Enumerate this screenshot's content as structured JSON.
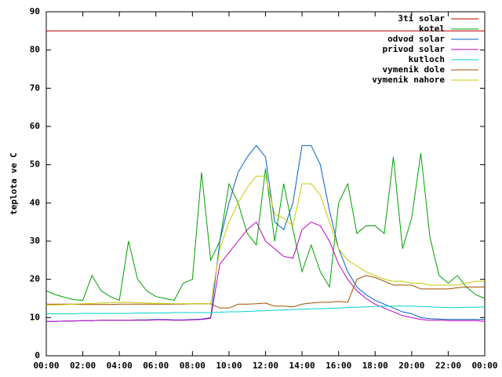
{
  "chart_data": {
    "type": "line",
    "ylabel": "teplota ve C",
    "xlim": [
      0,
      24
    ],
    "ylim": [
      0,
      90
    ],
    "yticks": [
      0,
      10,
      20,
      30,
      40,
      50,
      60,
      70,
      80,
      90
    ],
    "xticks": [
      {
        "value": 0,
        "label": "00:00"
      },
      {
        "value": 2,
        "label": "02:00"
      },
      {
        "value": 4,
        "label": "04:00"
      },
      {
        "value": 6,
        "label": "06:00"
      },
      {
        "value": 8,
        "label": "08:00"
      },
      {
        "value": 10,
        "label": "10:00"
      },
      {
        "value": 12,
        "label": "12:00"
      },
      {
        "value": 14,
        "label": "14:00"
      },
      {
        "value": 16,
        "label": "16:00"
      },
      {
        "value": 18,
        "label": "18:00"
      },
      {
        "value": 20,
        "label": "20:00"
      },
      {
        "value": 22,
        "label": "22:00"
      },
      {
        "value": 24,
        "label": "00:00"
      }
    ],
    "legend": "top right",
    "x": [
      0,
      0.5,
      1,
      1.5,
      2,
      2.5,
      3,
      3.5,
      4,
      4.5,
      5,
      5.5,
      6,
      6.5,
      7,
      7.5,
      8,
      8.5,
      9,
      9.5,
      10,
      10.5,
      11,
      11.5,
      12,
      12.5,
      13,
      13.5,
      14,
      14.5,
      15,
      15.5,
      16,
      16.5,
      17,
      17.5,
      18,
      18.5,
      19,
      19.5,
      20,
      20.5,
      21,
      21.5,
      22,
      22.5,
      23,
      23.5,
      24
    ],
    "series": [
      {
        "name": "3ti solar",
        "color": "#c00000",
        "values": [
          85,
          85,
          85,
          85,
          85,
          85,
          85,
          85,
          85,
          85,
          85,
          85,
          85,
          85,
          85,
          85,
          85,
          85,
          85,
          85,
          85,
          85,
          85,
          85,
          85,
          85,
          85,
          85,
          85,
          85,
          85,
          85,
          85,
          85,
          85,
          85,
          85,
          85,
          85,
          85,
          85,
          85,
          85,
          85,
          85,
          85,
          85,
          85,
          85
        ]
      },
      {
        "name": "kotel",
        "color": "#00a000",
        "values": [
          17,
          16,
          15.3,
          14.7,
          14.5,
          21,
          17,
          15.5,
          14.5,
          30,
          20,
          17,
          15.5,
          15,
          14.5,
          19,
          20,
          48,
          25,
          30,
          45,
          40,
          32,
          29,
          49,
          30,
          45,
          33,
          22,
          29,
          22,
          18,
          40,
          45,
          32,
          34,
          34,
          32,
          52,
          28,
          36,
          53,
          31,
          21,
          19,
          21,
          18,
          16,
          15
        ]
      },
      {
        "name": "odvod solar",
        "color": "#0060c0",
        "values": [
          9,
          9,
          9.1,
          9.1,
          9.2,
          9.2,
          9.3,
          9.3,
          9.3,
          9.3,
          9.4,
          9.4,
          9.5,
          9.5,
          9.4,
          9.4,
          9.5,
          9.6,
          10,
          30,
          40,
          48,
          52,
          55,
          52,
          35,
          33,
          40,
          55,
          55,
          50,
          38,
          28,
          22,
          18,
          16,
          14.5,
          13.5,
          12.5,
          11.5,
          11,
          10,
          9.7,
          9.6,
          9.5,
          9.5,
          9.5,
          9.5,
          9.5
        ]
      },
      {
        "name": "privod solar",
        "color": "#c000c0",
        "values": [
          9,
          9,
          9.1,
          9.1,
          9.2,
          9.2,
          9.3,
          9.3,
          9.3,
          9.3,
          9.3,
          9.3,
          9.4,
          9.4,
          9.3,
          9.3,
          9.4,
          9.5,
          9.8,
          24,
          27,
          30,
          33,
          35,
          30,
          28,
          26,
          25.5,
          33,
          35,
          34,
          30,
          24,
          20,
          17,
          15,
          13.5,
          12.5,
          11.5,
          10.5,
          10,
          9.5,
          9.3,
          9.3,
          9.2,
          9.2,
          9.2,
          9.2,
          9
        ]
      },
      {
        "name": "kutloch",
        "color": "#00d0d0",
        "values": [
          11,
          11,
          11,
          11,
          11.1,
          11.1,
          11.1,
          11.1,
          11.1,
          11.1,
          11.2,
          11.2,
          11.2,
          11.2,
          11.3,
          11.3,
          11.3,
          11.3,
          11.3,
          11.4,
          11.5,
          11.5,
          11.6,
          11.7,
          11.8,
          11.9,
          12,
          12.1,
          12.2,
          12.3,
          12.3,
          12.4,
          12.5,
          12.6,
          12.7,
          12.8,
          12.9,
          13,
          13,
          13,
          13,
          12.9,
          12.8,
          12.7,
          12.6,
          12.6,
          12.7,
          12.7,
          12.8
        ]
      },
      {
        "name": "vymenik dole",
        "color": "#a05000",
        "values": [
          13.5,
          13.5,
          13.5,
          13.5,
          13.4,
          13.4,
          13.4,
          13.4,
          13.5,
          13.5,
          13.5,
          13.5,
          13.5,
          13.5,
          13.5,
          13.5,
          13.6,
          13.6,
          13.6,
          12.5,
          12.5,
          13.5,
          13.5,
          13.6,
          13.8,
          13,
          13,
          12.8,
          13.5,
          13.8,
          14,
          14,
          14.2,
          14,
          20,
          21,
          20.5,
          19.5,
          18.5,
          18.5,
          18.5,
          17.5,
          17.5,
          17.5,
          17.5,
          17.8,
          18,
          18,
          18
        ]
      },
      {
        "name": "vymenik nahore",
        "color": "#c8c800",
        "values": [
          13.3,
          13.3,
          13.4,
          13.5,
          13.6,
          13.7,
          13.8,
          13.9,
          14,
          14,
          13.9,
          13.8,
          13.7,
          13.7,
          13.6,
          13.6,
          13.6,
          13.6,
          13.6,
          28,
          35,
          40,
          44,
          47,
          47,
          37,
          36,
          34,
          45,
          45,
          42,
          35,
          28,
          25,
          23.5,
          22,
          21,
          20,
          19.5,
          19.5,
          19,
          19,
          18.5,
          18.5,
          18.5,
          18.5,
          19,
          19.5,
          19.5
        ]
      }
    ]
  }
}
